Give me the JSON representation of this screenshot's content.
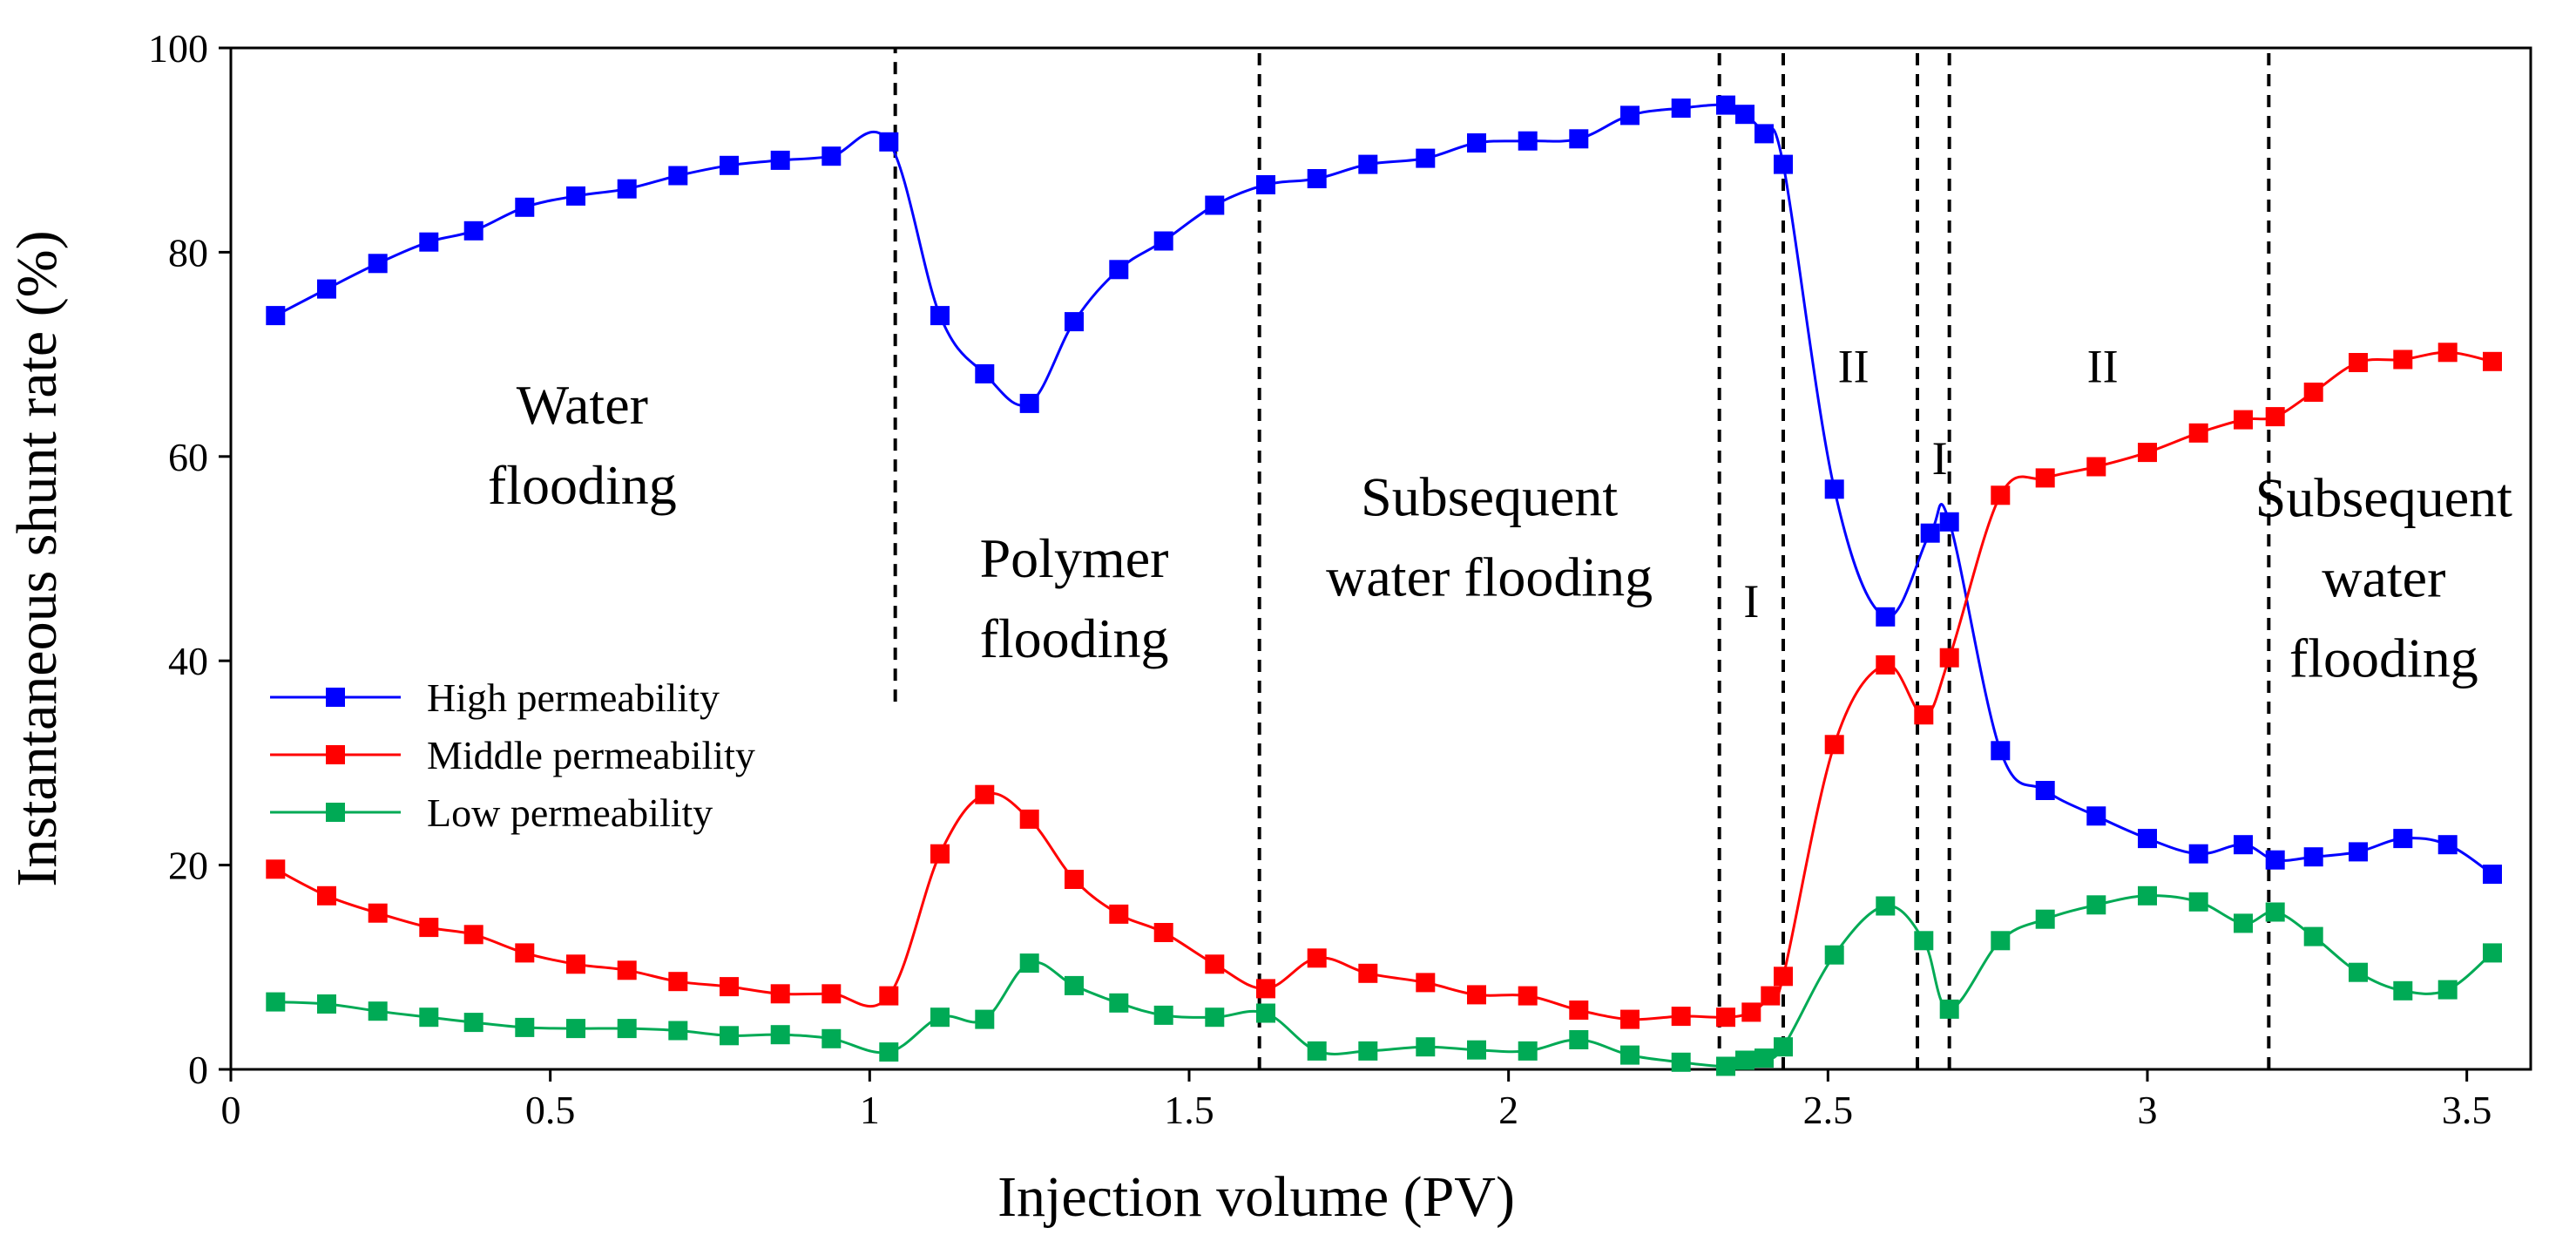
{
  "chart_data": {
    "type": "line",
    "title": "",
    "xlabel": "Injection volume (PV)",
    "ylabel": "Instantaneous shunt rate (%)",
    "xlim": [
      0,
      3.6
    ],
    "ylim": [
      0,
      100
    ],
    "xticks": [
      0,
      0.5,
      1,
      1.5,
      2,
      2.5,
      3,
      3.5
    ],
    "xtick_labels": [
      "0",
      "0.5",
      "1",
      "1.5",
      "2",
      "2.5",
      "3",
      "3.5"
    ],
    "yticks": [
      0,
      20,
      40,
      60,
      80,
      100
    ],
    "ytick_labels": [
      "0",
      "20",
      "40",
      "60",
      "80",
      "100"
    ],
    "grid": false,
    "legend_position": "left-middle",
    "series": [
      {
        "name": "High permeability",
        "color": "#0000ff",
        "points": [
          [
            0.07,
            73.8
          ],
          [
            0.15,
            76.4
          ],
          [
            0.23,
            78.9
          ],
          [
            0.31,
            81.0
          ],
          [
            0.38,
            82.1
          ],
          [
            0.46,
            84.4
          ],
          [
            0.54,
            85.5
          ],
          [
            0.62,
            86.2
          ],
          [
            0.7,
            87.5
          ],
          [
            0.78,
            88.5
          ],
          [
            0.86,
            89.0
          ],
          [
            0.94,
            89.4
          ],
          [
            1.03,
            90.8
          ],
          [
            1.11,
            73.8
          ],
          [
            1.18,
            68.1
          ],
          [
            1.25,
            65.2
          ],
          [
            1.32,
            73.2
          ],
          [
            1.39,
            78.3
          ],
          [
            1.46,
            81.1
          ],
          [
            1.54,
            84.6
          ],
          [
            1.62,
            86.6
          ],
          [
            1.7,
            87.2
          ],
          [
            1.78,
            88.6
          ],
          [
            1.87,
            89.2
          ],
          [
            1.95,
            90.7
          ],
          [
            2.03,
            90.9
          ],
          [
            2.11,
            91.1
          ],
          [
            2.19,
            93.4
          ],
          [
            2.27,
            94.1
          ],
          [
            2.34,
            94.4
          ],
          [
            2.37,
            93.5
          ],
          [
            2.4,
            91.6
          ],
          [
            2.43,
            88.6
          ],
          [
            2.51,
            56.8
          ],
          [
            2.59,
            44.3
          ],
          [
            2.66,
            52.5
          ],
          [
            2.69,
            53.6
          ],
          [
            2.77,
            31.2
          ],
          [
            2.84,
            27.3
          ],
          [
            2.92,
            24.8
          ],
          [
            3.0,
            22.6
          ],
          [
            3.08,
            21.1
          ],
          [
            3.15,
            22.0
          ],
          [
            3.2,
            20.5
          ],
          [
            3.26,
            20.8
          ],
          [
            3.33,
            21.3
          ],
          [
            3.4,
            22.6
          ],
          [
            3.47,
            22.0
          ],
          [
            3.54,
            19.1
          ]
        ]
      },
      {
        "name": "Middle permeability",
        "color": "#ff0000",
        "points": [
          [
            0.07,
            19.6
          ],
          [
            0.15,
            17.0
          ],
          [
            0.23,
            15.3
          ],
          [
            0.31,
            13.9
          ],
          [
            0.38,
            13.2
          ],
          [
            0.46,
            11.4
          ],
          [
            0.54,
            10.3
          ],
          [
            0.62,
            9.7
          ],
          [
            0.7,
            8.6
          ],
          [
            0.78,
            8.1
          ],
          [
            0.86,
            7.4
          ],
          [
            0.94,
            7.4
          ],
          [
            1.03,
            7.2
          ],
          [
            1.11,
            21.1
          ],
          [
            1.18,
            26.9
          ],
          [
            1.25,
            24.5
          ],
          [
            1.32,
            18.6
          ],
          [
            1.39,
            15.2
          ],
          [
            1.46,
            13.4
          ],
          [
            1.54,
            10.3
          ],
          [
            1.62,
            7.9
          ],
          [
            1.7,
            10.9
          ],
          [
            1.78,
            9.4
          ],
          [
            1.87,
            8.5
          ],
          [
            1.95,
            7.3
          ],
          [
            2.03,
            7.2
          ],
          [
            2.11,
            5.8
          ],
          [
            2.19,
            4.9
          ],
          [
            2.27,
            5.2
          ],
          [
            2.34,
            5.1
          ],
          [
            2.38,
            5.6
          ],
          [
            2.41,
            7.2
          ],
          [
            2.43,
            9.1
          ],
          [
            2.51,
            31.8
          ],
          [
            2.59,
            39.6
          ],
          [
            2.65,
            34.7
          ],
          [
            2.69,
            40.3
          ],
          [
            2.77,
            56.2
          ],
          [
            2.84,
            57.9
          ],
          [
            2.92,
            59.0
          ],
          [
            3.0,
            60.4
          ],
          [
            3.08,
            62.3
          ],
          [
            3.15,
            63.6
          ],
          [
            3.2,
            63.9
          ],
          [
            3.26,
            66.3
          ],
          [
            3.33,
            69.2
          ],
          [
            3.4,
            69.5
          ],
          [
            3.47,
            70.2
          ],
          [
            3.54,
            69.3
          ]
        ]
      },
      {
        "name": "Low permeability",
        "color": "#00aa55",
        "points": [
          [
            0.07,
            6.6
          ],
          [
            0.15,
            6.4
          ],
          [
            0.23,
            5.7
          ],
          [
            0.31,
            5.1
          ],
          [
            0.38,
            4.6
          ],
          [
            0.46,
            4.1
          ],
          [
            0.54,
            4.0
          ],
          [
            0.62,
            4.0
          ],
          [
            0.7,
            3.8
          ],
          [
            0.78,
            3.3
          ],
          [
            0.86,
            3.4
          ],
          [
            0.94,
            3.0
          ],
          [
            1.03,
            1.7
          ],
          [
            1.11,
            5.1
          ],
          [
            1.18,
            4.9
          ],
          [
            1.25,
            10.4
          ],
          [
            1.32,
            8.2
          ],
          [
            1.39,
            6.5
          ],
          [
            1.46,
            5.3
          ],
          [
            1.54,
            5.1
          ],
          [
            1.62,
            5.5
          ],
          [
            1.7,
            1.8
          ],
          [
            1.78,
            1.8
          ],
          [
            1.87,
            2.2
          ],
          [
            1.95,
            1.9
          ],
          [
            2.03,
            1.8
          ],
          [
            2.11,
            2.9
          ],
          [
            2.19,
            1.4
          ],
          [
            2.27,
            0.7
          ],
          [
            2.34,
            0.3
          ],
          [
            2.37,
            0.9
          ],
          [
            2.4,
            1.1
          ],
          [
            2.43,
            2.2
          ],
          [
            2.51,
            11.2
          ],
          [
            2.59,
            16.0
          ],
          [
            2.65,
            12.6
          ],
          [
            2.69,
            5.9
          ],
          [
            2.77,
            12.6
          ],
          [
            2.84,
            14.7
          ],
          [
            2.92,
            16.1
          ],
          [
            3.0,
            17.0
          ],
          [
            3.08,
            16.4
          ],
          [
            3.15,
            14.3
          ],
          [
            3.2,
            15.4
          ],
          [
            3.26,
            13.0
          ],
          [
            3.33,
            9.5
          ],
          [
            3.4,
            7.7
          ],
          [
            3.47,
            7.8
          ],
          [
            3.54,
            11.4
          ]
        ]
      }
    ],
    "vertical_lines": [
      {
        "x": 1.04,
        "y_from": 36,
        "y_to": 100
      },
      {
        "x": 1.61,
        "y_from": 0,
        "y_to": 100
      },
      {
        "x": 2.33,
        "y_from": 0,
        "y_to": 100
      },
      {
        "x": 2.43,
        "y_from": 0,
        "y_to": 100
      },
      {
        "x": 2.64,
        "y_from": 0,
        "y_to": 100
      },
      {
        "x": 2.69,
        "y_from": 0,
        "y_to": 100
      },
      {
        "x": 3.19,
        "y_from": 0,
        "y_to": 100
      }
    ],
    "annotations": [
      {
        "lines": [
          "Water",
          "flooding"
        ],
        "x": 0.55,
        "y": 61,
        "kind": "region"
      },
      {
        "lines": [
          "Polymer",
          "flooding"
        ],
        "x": 1.32,
        "y": 46,
        "kind": "region"
      },
      {
        "lines": [
          "Subsequent",
          "water flooding"
        ],
        "x": 1.97,
        "y": 52,
        "kind": "region"
      },
      {
        "lines": [
          "I"
        ],
        "x": 2.38,
        "y": 46,
        "kind": "phase"
      },
      {
        "lines": [
          "II"
        ],
        "x": 2.54,
        "y": 69,
        "kind": "phase"
      },
      {
        "lines": [
          "I"
        ],
        "x": 2.675,
        "y": 60,
        "kind": "phase"
      },
      {
        "lines": [
          "II"
        ],
        "x": 2.93,
        "y": 69,
        "kind": "phase"
      },
      {
        "lines": [
          "Subsequent",
          "water",
          "flooding"
        ],
        "x": 3.37,
        "y": 48,
        "kind": "region"
      }
    ]
  }
}
